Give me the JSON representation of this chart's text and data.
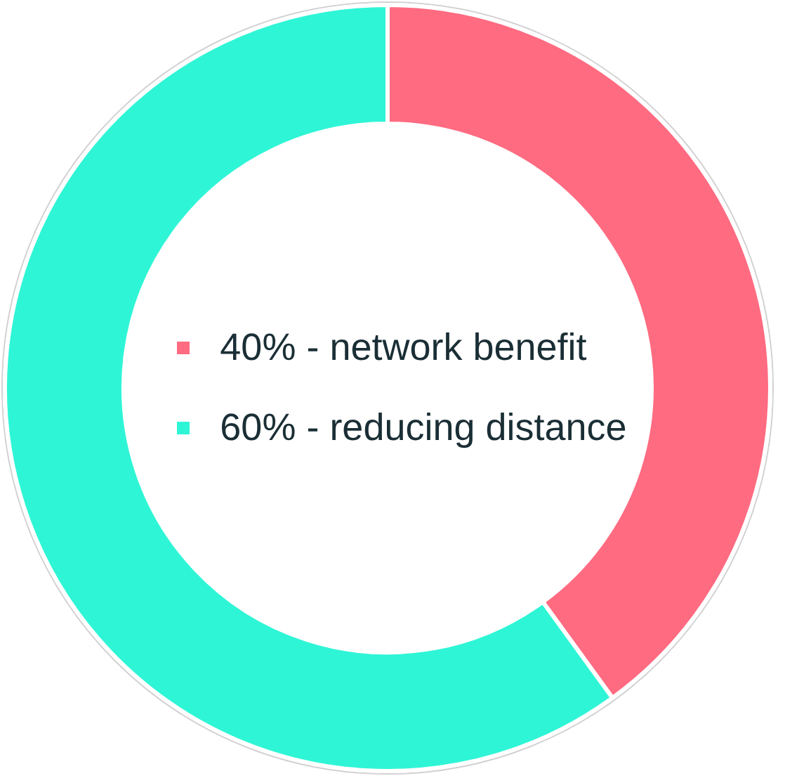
{
  "chart_data": {
    "type": "donut",
    "categories": [
      "40% - network benefit",
      "60% - reducing distance"
    ],
    "values": [
      40,
      60
    ],
    "colors": [
      "#ff6b81",
      "#2ef5d6"
    ],
    "legend": "center"
  }
}
